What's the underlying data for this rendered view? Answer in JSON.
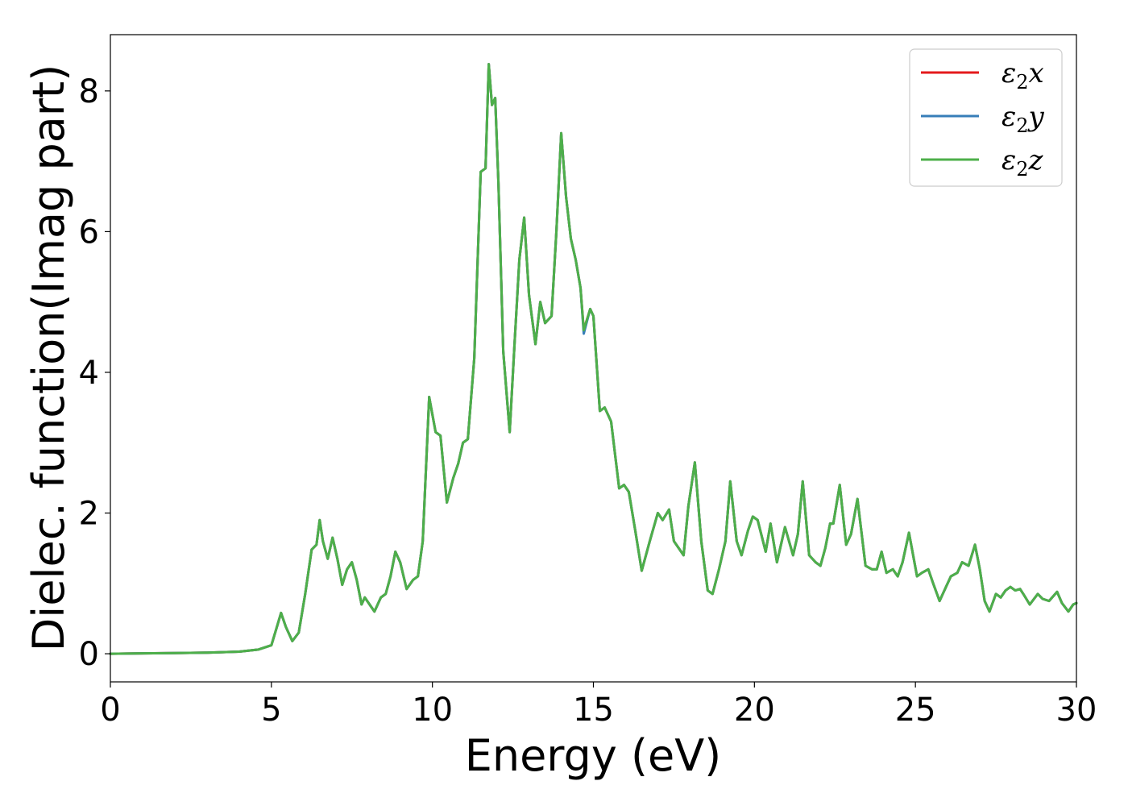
{
  "chart_data": {
    "type": "line",
    "xlabel": "Energy (eV)",
    "ylabel": "Dielec. function(Imag part)",
    "xlim": [
      0,
      30
    ],
    "ylim": [
      -0.4,
      8.8
    ],
    "xticks": [
      0,
      5,
      10,
      15,
      20,
      25,
      30
    ],
    "yticks": [
      0,
      2,
      4,
      6,
      8
    ],
    "grid": false,
    "legend_position": "top-right",
    "x": [
      0,
      1,
      2,
      3,
      4,
      4.6,
      5.0,
      5.15,
      5.3,
      5.45,
      5.65,
      5.85,
      6.05,
      6.25,
      6.4,
      6.5,
      6.6,
      6.75,
      6.9,
      7.05,
      7.2,
      7.35,
      7.5,
      7.65,
      7.8,
      7.9,
      8.05,
      8.2,
      8.4,
      8.55,
      8.7,
      8.85,
      9.0,
      9.2,
      9.4,
      9.55,
      9.7,
      9.9,
      10.1,
      10.25,
      10.45,
      10.65,
      10.8,
      10.95,
      11.1,
      11.3,
      11.5,
      11.65,
      11.75,
      11.85,
      11.95,
      12.05,
      12.2,
      12.4,
      12.55,
      12.7,
      12.85,
      13.0,
      13.2,
      13.35,
      13.5,
      13.7,
      13.85,
      14.0,
      14.15,
      14.3,
      14.45,
      14.6,
      14.7,
      14.9,
      15.0,
      15.2,
      15.35,
      15.55,
      15.8,
      15.95,
      16.1,
      16.3,
      16.5,
      16.75,
      17.0,
      17.15,
      17.35,
      17.5,
      17.65,
      17.8,
      17.95,
      18.15,
      18.35,
      18.55,
      18.7,
      18.9,
      19.1,
      19.25,
      19.45,
      19.6,
      19.8,
      19.95,
      20.1,
      20.35,
      20.5,
      20.7,
      20.95,
      21.2,
      21.35,
      21.5,
      21.7,
      21.9,
      22.05,
      22.2,
      22.35,
      22.45,
      22.65,
      22.85,
      23.0,
      23.2,
      23.45,
      23.65,
      23.8,
      23.95,
      24.1,
      24.3,
      24.45,
      24.6,
      24.8,
      25.05,
      25.2,
      25.4,
      25.55,
      25.75,
      25.95,
      26.1,
      26.3,
      26.45,
      26.65,
      26.85,
      27.0,
      27.15,
      27.3,
      27.5,
      27.65,
      27.8,
      27.95,
      28.1,
      28.25,
      28.35,
      28.55,
      28.8,
      28.95,
      29.15,
      29.4,
      29.55,
      29.75,
      29.9,
      30.0
    ],
    "series": [
      {
        "name": "ε2x",
        "label_base": "ε",
        "label_sub": "2",
        "label_tail": "x",
        "color": "#e41a1c",
        "y": [
          0,
          0.005,
          0.01,
          0.015,
          0.03,
          0.06,
          0.12,
          0.35,
          0.58,
          0.38,
          0.18,
          0.3,
          0.85,
          1.48,
          1.55,
          1.9,
          1.6,
          1.35,
          1.65,
          1.35,
          0.98,
          1.2,
          1.3,
          1.05,
          0.7,
          0.8,
          0.7,
          0.6,
          0.8,
          0.85,
          1.1,
          1.45,
          1.3,
          0.92,
          1.05,
          1.1,
          1.6,
          3.65,
          3.15,
          3.1,
          2.15,
          2.5,
          2.7,
          3.0,
          3.05,
          4.2,
          6.85,
          6.9,
          8.38,
          7.8,
          7.9,
          6.7,
          4.3,
          3.15,
          4.4,
          5.6,
          6.2,
          5.1,
          4.4,
          5.0,
          4.7,
          4.8,
          6.0,
          7.4,
          6.5,
          5.9,
          5.6,
          5.2,
          4.6,
          4.9,
          4.8,
          3.45,
          3.5,
          3.3,
          2.35,
          2.4,
          2.3,
          1.75,
          1.18,
          1.6,
          2.0,
          1.9,
          2.05,
          1.6,
          1.5,
          1.4,
          2.1,
          2.72,
          1.6,
          0.9,
          0.85,
          1.2,
          1.6,
          2.45,
          1.6,
          1.4,
          1.75,
          1.95,
          1.9,
          1.45,
          1.85,
          1.3,
          1.8,
          1.4,
          1.7,
          2.45,
          1.4,
          1.3,
          1.25,
          1.5,
          1.85,
          1.85,
          2.4,
          1.55,
          1.7,
          2.2,
          1.25,
          1.2,
          1.2,
          1.45,
          1.15,
          1.2,
          1.1,
          1.3,
          1.72,
          1.1,
          1.15,
          1.2,
          1.0,
          0.75,
          0.95,
          1.1,
          1.15,
          1.3,
          1.25,
          1.55,
          1.2,
          0.75,
          0.6,
          0.85,
          0.8,
          0.9,
          0.95,
          0.9,
          0.92,
          0.85,
          0.7,
          0.85,
          0.78,
          0.75,
          0.88,
          0.72,
          0.6,
          0.7,
          0.72
        ]
      },
      {
        "name": "ε2y",
        "label_base": "ε",
        "label_sub": "2",
        "label_tail": "y",
        "color": "#377eb8",
        "y": [
          0,
          0.005,
          0.01,
          0.015,
          0.03,
          0.06,
          0.12,
          0.35,
          0.58,
          0.38,
          0.18,
          0.3,
          0.85,
          1.48,
          1.55,
          1.9,
          1.6,
          1.35,
          1.65,
          1.35,
          0.98,
          1.2,
          1.3,
          1.05,
          0.7,
          0.8,
          0.7,
          0.6,
          0.8,
          0.85,
          1.1,
          1.45,
          1.3,
          0.92,
          1.05,
          1.1,
          1.6,
          3.65,
          3.15,
          3.1,
          2.15,
          2.5,
          2.7,
          3.0,
          3.05,
          4.2,
          6.85,
          6.9,
          8.38,
          7.8,
          7.9,
          6.7,
          4.3,
          3.15,
          4.4,
          5.6,
          6.2,
          5.1,
          4.4,
          5.0,
          4.7,
          4.8,
          6.0,
          7.4,
          6.5,
          5.9,
          5.6,
          5.2,
          4.55,
          4.9,
          4.8,
          3.45,
          3.5,
          3.3,
          2.35,
          2.4,
          2.3,
          1.75,
          1.18,
          1.6,
          2.0,
          1.9,
          2.05,
          1.6,
          1.5,
          1.4,
          2.1,
          2.72,
          1.6,
          0.9,
          0.85,
          1.2,
          1.6,
          2.45,
          1.6,
          1.4,
          1.75,
          1.95,
          1.9,
          1.45,
          1.85,
          1.3,
          1.8,
          1.4,
          1.7,
          2.45,
          1.4,
          1.3,
          1.25,
          1.5,
          1.85,
          1.85,
          2.4,
          1.55,
          1.7,
          2.2,
          1.25,
          1.2,
          1.2,
          1.45,
          1.15,
          1.2,
          1.1,
          1.3,
          1.72,
          1.1,
          1.15,
          1.2,
          1.0,
          0.75,
          0.95,
          1.1,
          1.15,
          1.3,
          1.25,
          1.55,
          1.2,
          0.75,
          0.6,
          0.85,
          0.8,
          0.9,
          0.95,
          0.9,
          0.92,
          0.85,
          0.7,
          0.85,
          0.78,
          0.75,
          0.88,
          0.72,
          0.6,
          0.7,
          0.72
        ]
      },
      {
        "name": "ε2z",
        "label_base": "ε",
        "label_sub": "2",
        "label_tail": "z",
        "color": "#4daf4a",
        "y": [
          0,
          0.005,
          0.01,
          0.015,
          0.03,
          0.06,
          0.12,
          0.35,
          0.58,
          0.38,
          0.18,
          0.3,
          0.85,
          1.48,
          1.55,
          1.9,
          1.6,
          1.35,
          1.65,
          1.35,
          0.98,
          1.2,
          1.3,
          1.05,
          0.7,
          0.8,
          0.7,
          0.6,
          0.8,
          0.85,
          1.1,
          1.45,
          1.3,
          0.92,
          1.05,
          1.1,
          1.6,
          3.65,
          3.15,
          3.1,
          2.15,
          2.5,
          2.7,
          3.0,
          3.05,
          4.2,
          6.85,
          6.9,
          8.38,
          7.8,
          7.9,
          6.7,
          4.3,
          3.15,
          4.4,
          5.6,
          6.2,
          5.1,
          4.4,
          5.0,
          4.7,
          4.8,
          6.0,
          7.4,
          6.5,
          5.9,
          5.6,
          5.2,
          4.6,
          4.9,
          4.8,
          3.45,
          3.5,
          3.3,
          2.35,
          2.4,
          2.3,
          1.75,
          1.18,
          1.6,
          2.0,
          1.9,
          2.05,
          1.6,
          1.5,
          1.4,
          2.1,
          2.72,
          1.6,
          0.9,
          0.85,
          1.2,
          1.6,
          2.45,
          1.6,
          1.4,
          1.75,
          1.95,
          1.9,
          1.45,
          1.85,
          1.3,
          1.8,
          1.4,
          1.7,
          2.45,
          1.4,
          1.3,
          1.25,
          1.5,
          1.85,
          1.85,
          2.4,
          1.55,
          1.7,
          2.2,
          1.25,
          1.2,
          1.2,
          1.45,
          1.15,
          1.2,
          1.1,
          1.3,
          1.72,
          1.1,
          1.15,
          1.2,
          1.0,
          0.75,
          0.95,
          1.1,
          1.15,
          1.3,
          1.25,
          1.55,
          1.2,
          0.75,
          0.6,
          0.85,
          0.8,
          0.9,
          0.95,
          0.9,
          0.92,
          0.85,
          0.7,
          0.85,
          0.78,
          0.75,
          0.88,
          0.72,
          0.6,
          0.7,
          0.72
        ]
      }
    ]
  }
}
